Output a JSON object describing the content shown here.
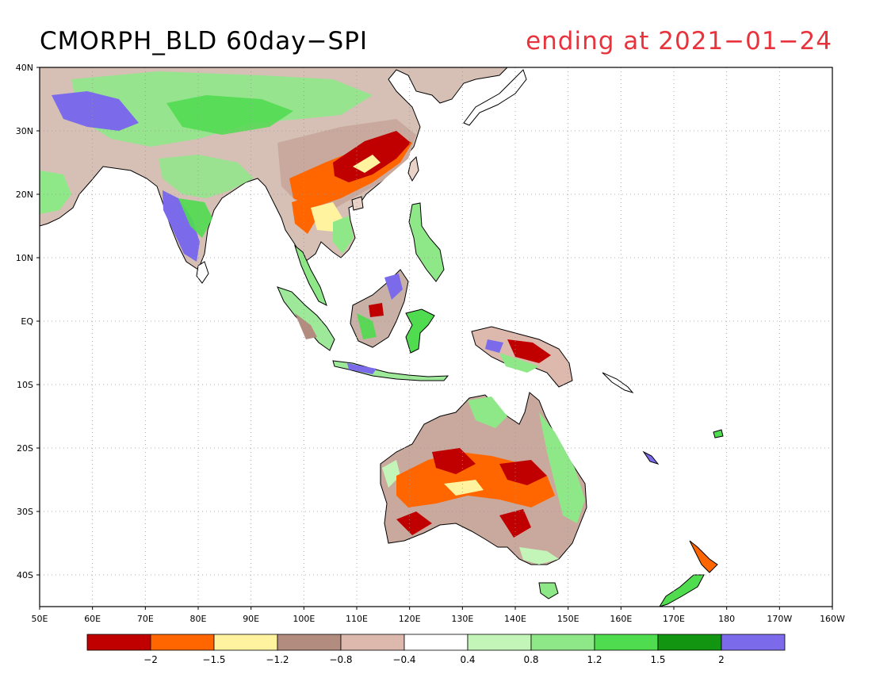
{
  "title": {
    "text": "CMORPH_BLD 60day−SPI",
    "color": "#000000"
  },
  "subtitle": {
    "text": "ending at 2021−01−24",
    "color": "#e8323c"
  },
  "map": {
    "projection": "lat-lon",
    "lon_range": [
      50,
      200
    ],
    "lat_range": [
      -45,
      40
    ],
    "grid": "dotted",
    "lat_ticks": [
      {
        "lat": 40,
        "label": "40N"
      },
      {
        "lat": 30,
        "label": "30N"
      },
      {
        "lat": 20,
        "label": "20N"
      },
      {
        "lat": 10,
        "label": "10N"
      },
      {
        "lat": 0,
        "label": "EQ"
      },
      {
        "lat": -10,
        "label": "10S"
      },
      {
        "lat": -20,
        "label": "20S"
      },
      {
        "lat": -30,
        "label": "30S"
      },
      {
        "lat": -40,
        "label": "40S"
      }
    ],
    "lon_ticks": [
      {
        "lon": 50,
        "label": "50E"
      },
      {
        "lon": 60,
        "label": "60E"
      },
      {
        "lon": 70,
        "label": "70E"
      },
      {
        "lon": 80,
        "label": "80E"
      },
      {
        "lon": 90,
        "label": "90E"
      },
      {
        "lon": 100,
        "label": "100E"
      },
      {
        "lon": 110,
        "label": "110E"
      },
      {
        "lon": 120,
        "label": "120E"
      },
      {
        "lon": 130,
        "label": "130E"
      },
      {
        "lon": 140,
        "label": "140E"
      },
      {
        "lon": 150,
        "label": "150E"
      },
      {
        "lon": 160,
        "label": "160E"
      },
      {
        "lon": 170,
        "label": "170E"
      },
      {
        "lon": 180,
        "label": "180"
      },
      {
        "lon": 190,
        "label": "170W"
      },
      {
        "lon": 200,
        "label": "160W"
      }
    ],
    "land_colors": {
      "dry_extreme": "#c00000",
      "dry_severe": "#ff6600",
      "dry_moderate": "#fff3a0",
      "dry_mild": "#b38c80",
      "dry_slight": "#dcb8ad",
      "neutral": "#ffffff",
      "wet_slight": "#c4f5b8",
      "wet_mild": "#8fe888",
      "wet_moderate": "#4fdc4f",
      "wet_severe": "#129612",
      "wet_extreme": "#7b6bea"
    }
  },
  "colorbar": {
    "colors": [
      "#c00000",
      "#ff6600",
      "#fff3a0",
      "#b38c80",
      "#dcb8ad",
      "#ffffff",
      "#c4f5b8",
      "#8fe888",
      "#4fdc4f",
      "#129612",
      "#7b6bea"
    ],
    "labels": [
      "−2",
      "−1.5",
      "−1.2",
      "−0.8",
      "−0.4",
      "0.4",
      "0.8",
      "1.2",
      "1.5",
      "2"
    ]
  }
}
